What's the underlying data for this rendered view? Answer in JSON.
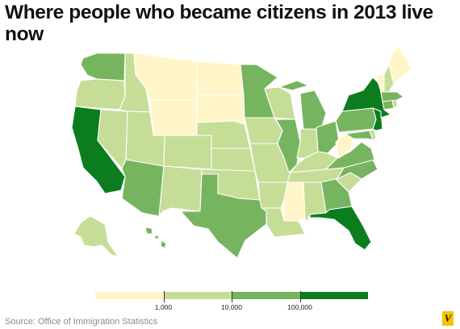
{
  "title": "Where people who became citizens in 2013 live now",
  "source": "Source: Office of Immigration Statistics",
  "brand_letter": "V",
  "legend": {
    "colors": [
      "#fff5c8",
      "#c6dd98",
      "#77b45f",
      "#0b7d1f"
    ],
    "ticks": [
      "1,000",
      "10,000",
      "100,000"
    ]
  },
  "color_scale": {
    "lt_1k": "#fff5c8",
    "1k_10k": "#c6dd98",
    "10k_100k": "#77b45f",
    "gt_100k": "#0b7d1f"
  },
  "map": {
    "region": "United States",
    "states": {
      "WA": "10k_100k",
      "OR": "1k_10k",
      "CA": "gt_100k",
      "NV": "1k_10k",
      "ID": "1k_10k",
      "MT": "lt_1k",
      "WY": "lt_1k",
      "UT": "1k_10k",
      "AZ": "10k_100k",
      "CO": "1k_10k",
      "NM": "1k_10k",
      "ND": "lt_1k",
      "SD": "lt_1k",
      "NE": "1k_10k",
      "KS": "1k_10k",
      "OK": "1k_10k",
      "TX": "10k_100k",
      "MN": "10k_100k",
      "IA": "1k_10k",
      "MO": "1k_10k",
      "AR": "1k_10k",
      "LA": "1k_10k",
      "WI": "1k_10k",
      "IL": "10k_100k",
      "MI": "10k_100k",
      "IN": "1k_10k",
      "OH": "10k_100k",
      "KY": "1k_10k",
      "TN": "1k_10k",
      "MS": "lt_1k",
      "AL": "1k_10k",
      "GA": "10k_100k",
      "FL": "gt_100k",
      "SC": "1k_10k",
      "NC": "10k_100k",
      "VA": "10k_100k",
      "WV": "lt_1k",
      "PA": "10k_100k",
      "NY": "gt_100k",
      "NJ": "gt_100k",
      "MD": "10k_100k",
      "DE": "1k_10k",
      "CT": "10k_100k",
      "RI": "1k_10k",
      "MA": "10k_100k",
      "VT": "lt_1k",
      "NH": "1k_10k",
      "ME": "lt_1k",
      "AK": "1k_10k",
      "HI": "10k_100k"
    }
  }
}
